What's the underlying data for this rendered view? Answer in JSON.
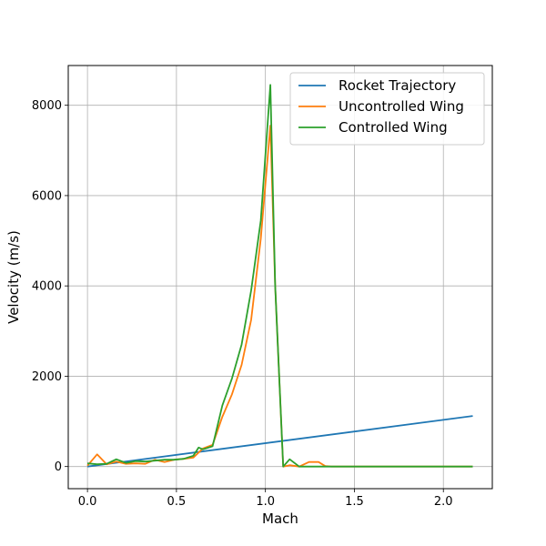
{
  "chart_data": {
    "type": "line",
    "xlabel": "Mach",
    "ylabel": "Velocity (m/s)",
    "xlim": [
      -0.108,
      2.275
    ],
    "ylim": [
      -490,
      8880
    ],
    "xticks": [
      0.0,
      0.5,
      1.0,
      1.5,
      2.0
    ],
    "xtick_labels": [
      "0.0",
      "0.5",
      "1.0",
      "1.5",
      "2.0"
    ],
    "yticks": [
      0,
      2000,
      4000,
      6000,
      8000
    ],
    "ytick_labels": [
      "0",
      "2000",
      "4000",
      "6000",
      "8000"
    ],
    "grid": true,
    "legend_position": "top-right",
    "series": [
      {
        "name": "Rocket Trajectory",
        "color": "#1f77b4",
        "x": [
          0.0,
          2.165
        ],
        "y": [
          0,
          1120
        ]
      },
      {
        "name": "Uncontrolled Wing",
        "color": "#ff7f0e",
        "x": [
          0.0,
          0.054,
          0.108,
          0.162,
          0.216,
          0.27,
          0.325,
          0.379,
          0.433,
          0.487,
          0.541,
          0.595,
          0.649,
          0.703,
          0.758,
          0.812,
          0.866,
          0.92,
          0.974,
          1.028,
          1.055,
          1.1,
          1.136,
          1.19,
          1.245,
          1.299,
          1.336,
          1.37,
          1.45,
          1.6,
          1.8,
          2.0,
          2.165
        ],
        "y": [
          20,
          270,
          50,
          110,
          60,
          70,
          60,
          150,
          100,
          150,
          170,
          200,
          400,
          480,
          1100,
          1600,
          2250,
          3250,
          5050,
          7550,
          4000,
          0,
          30,
          0,
          100,
          100,
          10,
          0,
          0,
          0,
          0,
          0,
          0
        ]
      },
      {
        "name": "Controlled Wing",
        "color": "#2ca02c",
        "x": [
          0.0,
          0.054,
          0.108,
          0.162,
          0.216,
          0.27,
          0.325,
          0.379,
          0.433,
          0.487,
          0.541,
          0.595,
          0.625,
          0.649,
          0.703,
          0.758,
          0.812,
          0.866,
          0.92,
          0.974,
          1.028,
          1.055,
          1.1,
          1.136,
          1.19,
          1.245,
          1.299,
          1.37,
          1.45,
          1.6,
          1.8,
          2.0,
          2.165
        ],
        "y": [
          70,
          50,
          60,
          160,
          80,
          120,
          110,
          130,
          150,
          150,
          170,
          240,
          420,
          380,
          450,
          1350,
          1950,
          2700,
          3900,
          5450,
          8450,
          4000,
          0,
          160,
          0,
          0,
          0,
          0,
          0,
          0,
          0,
          0,
          0
        ]
      }
    ]
  }
}
